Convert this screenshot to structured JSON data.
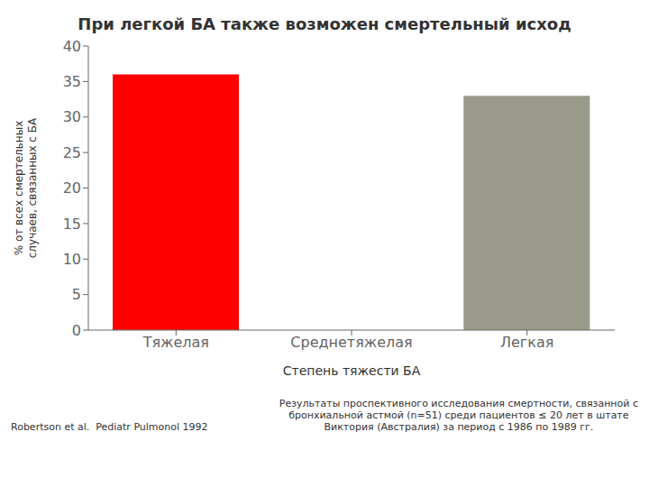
{
  "chart_data": {
    "type": "bar",
    "title": "При легкой БА также возможен смертельный исход",
    "xlabel": "Степень тяжести БА",
    "ylabel": "% от всех смертельных\nслучаев, связанных с БА",
    "categories": [
      "Тяжелая",
      "Среднетяжелая",
      "Легкая"
    ],
    "values": [
      36,
      0,
      33
    ],
    "colors": [
      "#ff0000",
      "#9a9a8a",
      "#9a9a8a"
    ],
    "ylim": [
      0,
      40
    ],
    "yticks": [
      0,
      5,
      10,
      15,
      20,
      25,
      30,
      35,
      40
    ],
    "grid": false,
    "annotations": [
      "Robertson et al.  Pediatr Pulmonol 1992",
      "Результаты проспективного исследования смертности, связанной с",
      "бронхиальной астмой (n=51) среди пациентов ≤ 20 лет в штате",
      "Виктория (Австралия) за период с 1986 по 1989 гг."
    ]
  }
}
